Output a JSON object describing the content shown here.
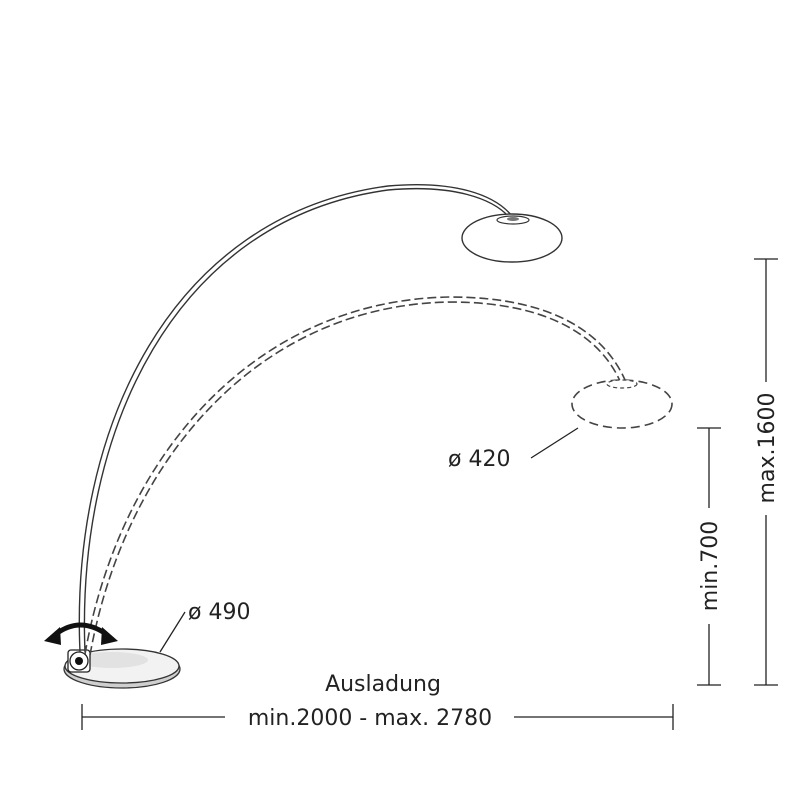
{
  "labels": {
    "shade_diameter": "ø 420",
    "base_diameter": "ø 490",
    "reach_title": "Ausladung",
    "reach_range": "min.2000 - max. 2780",
    "height_min": "min.700",
    "height_max": "max.1600"
  },
  "colors": {
    "line": "#333333",
    "arrow": "#111111",
    "base_fill": "#efefef",
    "background": "#ffffff"
  }
}
